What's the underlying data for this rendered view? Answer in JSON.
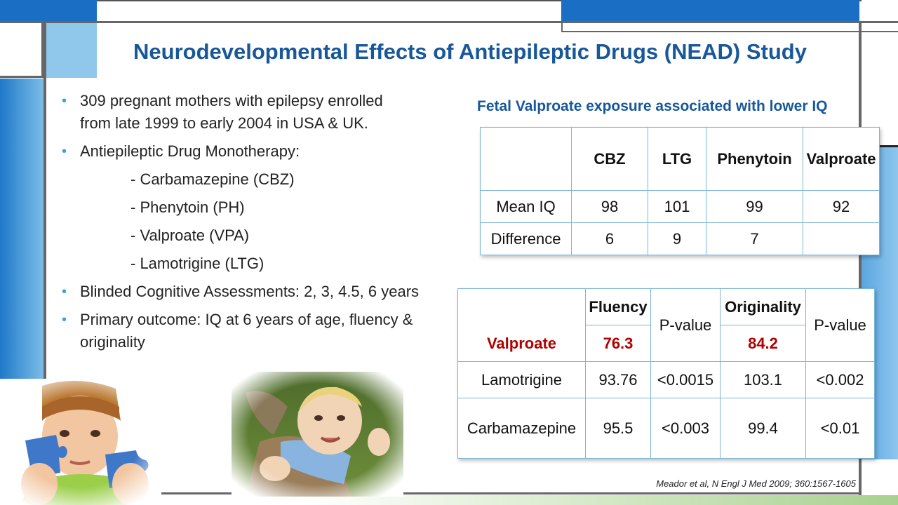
{
  "slide": {
    "title": "Neurodevelopmental Effects of Antiepileptic Drugs (NEAD) Study",
    "citation": "Meador et al, N Engl J Med 2009; 360:1567-1605"
  },
  "bullets": {
    "b1_line1": "309 pregnant mothers with epilepsy enrolled",
    "b1_line2": "from late 1999 to early 2004 in USA & UK.",
    "b2": "Antiepileptic Drug Monotherapy:",
    "sub": [
      "- Carbamazepine (CBZ)",
      "- Phenytoin (PH)",
      "- Valproate (VPA)",
      "- Lamotrigine (LTG)"
    ],
    "b3": "Blinded Cognitive Assessments: 2, 3, 4.5, 6 years",
    "b4_line1": "Primary outcome: IQ at 6 years of age, fluency &",
    "b4_line2": "originality"
  },
  "iq_table": {
    "caption": "Fetal Valproate exposure associated with lower IQ",
    "headers": [
      "",
      "CBZ",
      "LTG",
      "Phenytoin",
      "Valproate"
    ],
    "mean_row": [
      "Mean IQ",
      "98",
      "101",
      "99",
      "92"
    ],
    "diff_row": [
      "Difference",
      "6",
      "9",
      "7",
      ""
    ]
  },
  "creativity_table": {
    "headers": [
      "Fluency",
      "P-value",
      "Originality",
      "P-value"
    ],
    "rows": [
      [
        "Valproate",
        "76.3",
        "84.2"
      ],
      [
        "Lamotrigine",
        "93.76",
        "<0.0015",
        "103.1",
        "<0.002"
      ],
      [
        "Carbamazepine",
        "95.5",
        "<0.003",
        "99.4",
        "<0.01"
      ]
    ]
  },
  "colors": {
    "title": "#17579a",
    "accent_blue": "#1a6fc4",
    "light_blue": "#7fc3e8",
    "highlight_red": "#b00000",
    "bullet": "#3aa0d8"
  }
}
